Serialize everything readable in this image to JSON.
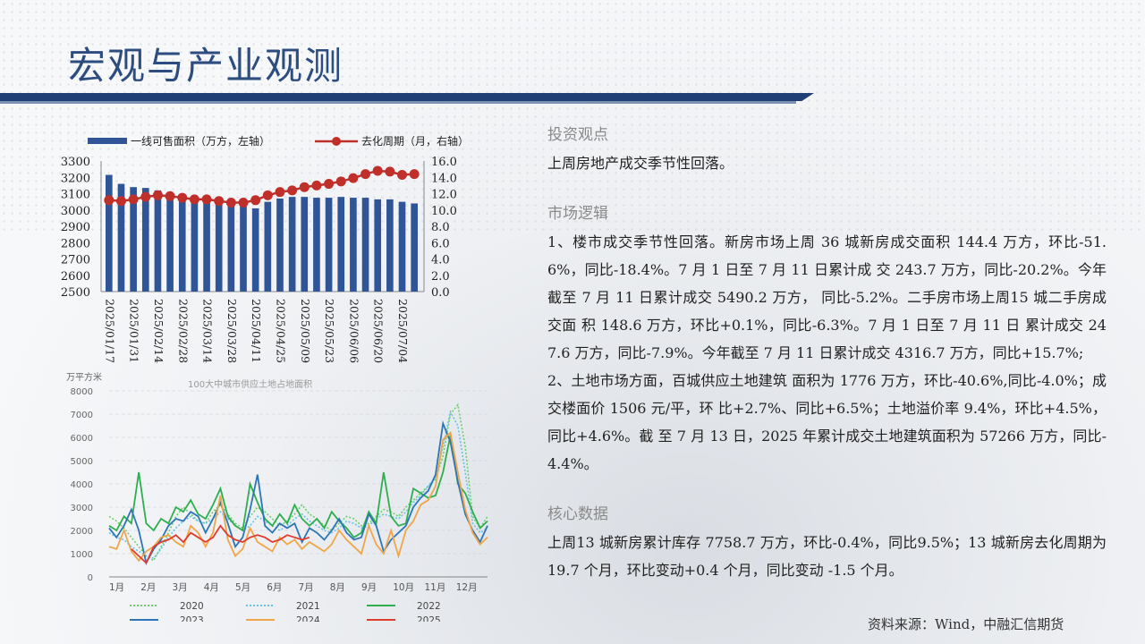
{
  "page_title": "宏观与产业观测",
  "sections": [
    {
      "title": "投资观点",
      "paragraphs": [
        "上周房地产成交季节性回落。"
      ]
    },
    {
      "title": "市场逻辑",
      "paragraphs": [
        "1、楼市成交季节性回落。新房市场上周 36 城新房成交面积 144.4 万方，环比-51.6%，同比-18.4%。7 月 1 日至 7 月 11 日累计成 交 243.7 万方，同比-20.2%。今年截至 7 月 11 日累计成交 5490.2 万方， 同比-5.2%。二手房市场上周15 城二手房成交面 积 148.6 万方，环比+0.1%，同比-6.3%。7 月 1 日至 7 月 11 日 累计成交 247.6 万方，同比-7.9%。今年截至 7 月 11 日累计成交 4316.7 万方，同比+15.7%;",
        "2、土地市场方面，百城供应土地建筑 面积为 1776 万方，环比-40.6%,同比-4.0%；成交楼面价 1506 元/平，环 比+2.7%、同比+6.5%；土地溢价率 9.4%，环比+4.5%，同比+4.6%。截 至 7 月 13 日，2025 年累计成交土地建筑面积为 57266 万方，同比-4.4%。"
      ]
    },
    {
      "title": "核心数据",
      "paragraphs": [
        "上周13 城新房累计库存 7758.7 万方，环比-0.4%，同比9.5%；13 城新房去化周期为 19.7 个月，环比变动+0.4 个月，同比变动 -1.5 个月。"
      ]
    }
  ],
  "source": "资料来源：Wind，中融汇信期货",
  "chart_data": [
    {
      "type": "bar+line",
      "legend": [
        "一线可售面积（万方，左轴）",
        "去化周期（月，右轴）"
      ],
      "legend_position": "top",
      "x": [
        "2025/01/17",
        "2025/01/24",
        "2025/01/31",
        "2025/02/07",
        "2025/02/14",
        "2025/02/21",
        "2025/02/28",
        "2025/03/07",
        "2025/03/14",
        "2025/03/21",
        "2025/03/28",
        "2025/04/04",
        "2025/04/11",
        "2025/04/18",
        "2025/04/25",
        "2025/05/02",
        "2025/05/09",
        "2025/05/16",
        "2025/05/23",
        "2025/05/30",
        "2025/06/06",
        "2025/06/13",
        "2025/06/20",
        "2025/06/27",
        "2025/07/04",
        "2025/07/11"
      ],
      "x_tick_labels": [
        "2025/01/17",
        "2025/01/31",
        "2025/02/14",
        "2025/02/28",
        "2025/03/14",
        "2025/03/28",
        "2025/04/11",
        "2025/04/25",
        "2025/05/09",
        "2025/05/23",
        "2025/06/06",
        "2025/06/20",
        "2025/07/04"
      ],
      "bars": [
        3215,
        3160,
        3140,
        3135,
        3120,
        3100,
        3080,
        3060,
        3055,
        3050,
        3040,
        3035,
        3010,
        3050,
        3070,
        3080,
        3080,
        3075,
        3075,
        3080,
        3075,
        3075,
        3065,
        3065,
        3050,
        3040
      ],
      "line": [
        11.2,
        11.1,
        11.3,
        11.6,
        11.8,
        11.7,
        11.5,
        11.3,
        11.3,
        11.1,
        10.9,
        10.9,
        11.2,
        11.8,
        12.2,
        12.4,
        12.8,
        13.0,
        13.2,
        13.5,
        13.9,
        14.4,
        14.8,
        14.7,
        14.3,
        14.4
      ],
      "y_left": {
        "min": 2500,
        "max": 3300,
        "ticks": [
          "2500",
          "2600",
          "2700",
          "2800",
          "2900",
          "3000",
          "3100",
          "3200",
          "3300"
        ]
      },
      "y_right": {
        "min": 0,
        "max": 16,
        "ticks": [
          "0.0",
          "2.0",
          "4.0",
          "6.0",
          "8.0",
          "10.0",
          "12.0",
          "14.0",
          "16.0"
        ]
      },
      "colors": {
        "bar": "#2f5597",
        "line": "#c0302b"
      }
    },
    {
      "type": "line",
      "title": "100大中城市供应土地占地面积",
      "ylabel": "万平方米",
      "y_ticks": [
        "0",
        "1000",
        "2000",
        "3000",
        "4000",
        "5000",
        "6000",
        "7000",
        "8000"
      ],
      "ylim": [
        0,
        8000
      ],
      "x_labels": [
        "1月",
        "2月",
        "3月",
        "4月",
        "5月",
        "6月",
        "7月",
        "8月",
        "9月",
        "10月",
        "11月",
        "12月"
      ],
      "grid": true,
      "legend_position": "bottom",
      "points_per_series": 52,
      "series": [
        {
          "name": "2020",
          "color": "#6ccf6c",
          "dashed": true,
          "values": [
            2600,
            2400,
            2100,
            1700,
            1300,
            900,
            700,
            1300,
            1900,
            2600,
            3000,
            2700,
            2400,
            2300,
            2800,
            3100,
            2700,
            2300,
            2100,
            2600,
            3000,
            2800,
            2500,
            2200,
            2400,
            2700,
            3100,
            2700,
            2500,
            2200,
            2000,
            2300,
            2600,
            2500,
            2200,
            2300,
            2600,
            2900,
            2800,
            2600,
            3000,
            3300,
            3600,
            3900,
            4200,
            5200,
            7000,
            7400,
            5600,
            2600,
            2100,
            2600
          ]
        },
        {
          "name": "2021",
          "color": "#66c2e8",
          "dashed": true,
          "values": [
            1900,
            1700,
            1600,
            1300,
            1100,
            900,
            800,
            1200,
            1700,
            2100,
            2400,
            2600,
            2400,
            2300,
            2500,
            2800,
            2500,
            2200,
            2000,
            2200,
            2600,
            2400,
            2200,
            2000,
            2200,
            2500,
            2700,
            2400,
            2200,
            2000,
            1900,
            2100,
            2400,
            2300,
            2100,
            2200,
            2500,
            2700,
            2600,
            2500,
            2800,
            3200,
            3500,
            3900,
            4300,
            5600,
            7100,
            6500,
            4500,
            2300,
            1900,
            2100
          ]
        },
        {
          "name": "2022",
          "color": "#2eae4f",
          "dashed": false,
          "values": [
            2200,
            2000,
            2600,
            2300,
            4500,
            2300,
            2000,
            2500,
            2300,
            3000,
            2800,
            3300,
            2700,
            2500,
            3100,
            3800,
            2600,
            2200,
            2000,
            4000,
            3200,
            2500,
            2200,
            2700,
            2300,
            3100,
            2500,
            2200,
            2500,
            2100,
            2800,
            2400,
            2100,
            1700,
            1900,
            2800,
            2300,
            4500,
            2600,
            2200,
            2300,
            3800,
            3600,
            3400,
            3500,
            4500,
            6100,
            4000,
            3600,
            2800,
            2100,
            2400
          ]
        },
        {
          "name": "2023",
          "color": "#2e75b6",
          "dashed": false,
          "values": [
            2100,
            1700,
            2200,
            2900,
            2000,
            600,
            1200,
            1600,
            2200,
            2500,
            2400,
            2800,
            2600,
            1900,
            2500,
            3200,
            2300,
            1300,
            1700,
            2900,
            4400,
            2200,
            1900,
            2300,
            2100,
            2300,
            1500,
            2100,
            1900,
            1600,
            2000,
            2500,
            1900,
            1600,
            1700,
            2700,
            2200,
            1100,
            1600,
            1900,
            2200,
            3000,
            3400,
            3700,
            4400,
            6600,
            5800,
            4100,
            2700,
            2000,
            1500,
            2200
          ]
        },
        {
          "name": "2024",
          "color": "#f0a548",
          "dashed": false,
          "values": [
            1300,
            1200,
            2000,
            1100,
            700,
            1100,
            1300,
            1700,
            1800,
            1500,
            1300,
            2200,
            1900,
            1300,
            1900,
            3500,
            1600,
            900,
            1200,
            2100,
            1500,
            1300,
            1100,
            1700,
            1400,
            1600,
            1200,
            1500,
            1300,
            1100,
            1400,
            2000,
            1600,
            1300,
            1000,
            2200,
            1400,
            1000,
            2000,
            900,
            2000,
            2400,
            3100,
            3300,
            3900,
            5900,
            6200,
            4500,
            2900,
            1900,
            1400,
            1700
          ]
        },
        {
          "name": "2025",
          "color": "#e03c2f",
          "dashed": false,
          "values": [
            null,
            null,
            null,
            1200,
            900,
            600,
            1300,
            1500,
            1600,
            1800,
            1500,
            1900,
            1700,
            1500,
            1700,
            2200,
            1800,
            1600,
            1500,
            1700,
            1800,
            1700,
            1500,
            1600,
            1800,
            1700,
            1600,
            1700
          ]
        }
      ]
    }
  ]
}
